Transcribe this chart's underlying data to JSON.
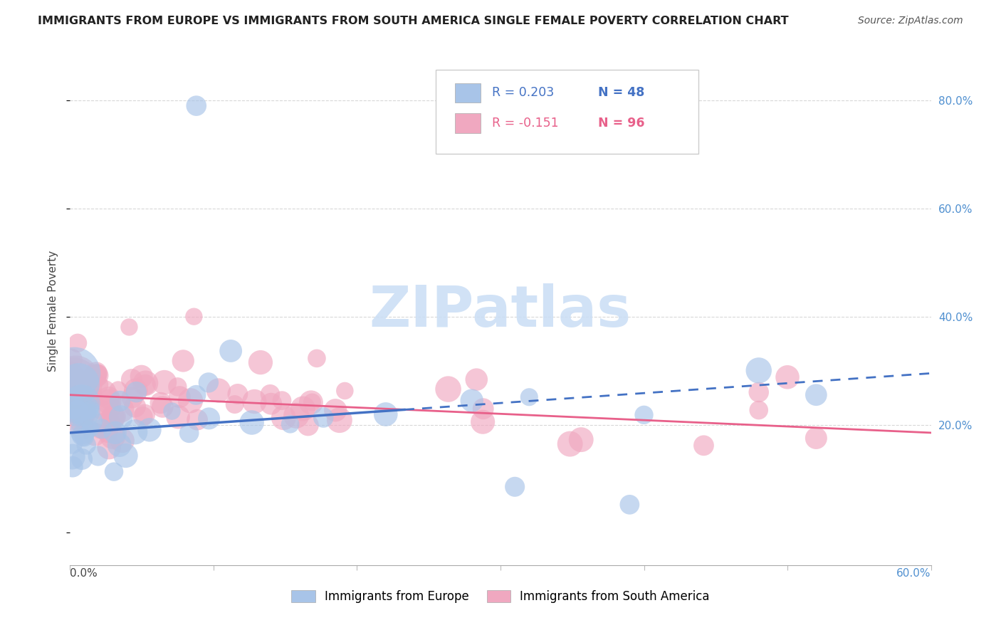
{
  "title": "IMMIGRANTS FROM EUROPE VS IMMIGRANTS FROM SOUTH AMERICA SINGLE FEMALE POVERTY CORRELATION CHART",
  "source": "Source: ZipAtlas.com",
  "ylabel": "Single Female Poverty",
  "legend_label1": "Immigrants from Europe",
  "legend_label2": "Immigrants from South America",
  "R_europe": 0.203,
  "N_europe": 48,
  "R_sa": -0.151,
  "N_sa": 96,
  "color_europe": "#a8c4e8",
  "color_sa": "#f0a8c0",
  "color_europe_line": "#4472c4",
  "color_sa_line": "#e8608a",
  "color_europe_text": "#4472c4",
  "color_sa_text": "#e8608a",
  "watermark_color": "#ccdff5",
  "background_color": "#ffffff",
  "grid_color": "#d8d8d8",
  "right_tick_color": "#5090d0",
  "xlim": [
    0.0,
    0.6
  ],
  "ylim": [
    -0.06,
    0.88
  ],
  "ylabel_right_vals": [
    0.2,
    0.4,
    0.6,
    0.8
  ],
  "eu_trend_x0": 0.0,
  "eu_trend_x1": 0.6,
  "eu_trend_y0": 0.185,
  "eu_trend_y1": 0.295,
  "sa_trend_x0": 0.0,
  "sa_trend_x1": 0.6,
  "sa_trend_y0": 0.255,
  "sa_trend_y1": 0.185
}
